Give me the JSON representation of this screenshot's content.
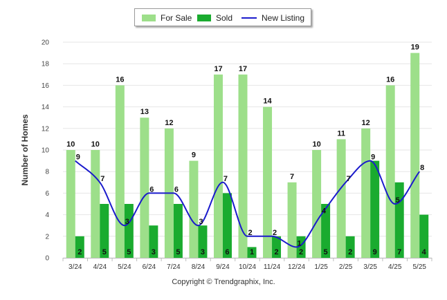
{
  "legend": {
    "for_sale": "For Sale",
    "sold": "Sold",
    "new_listing": "New Listing"
  },
  "copyright": "Copyright © Trendgraphix, Inc.",
  "colors": {
    "for_sale": "#9ddf8a",
    "sold": "#1aab2f",
    "new_listing": "#1a1acc"
  },
  "chart_data": {
    "type": "bar",
    "ylabel": "Number of Homes",
    "xlabel": "",
    "ylim": [
      0,
      20
    ],
    "yticks": [
      0,
      2,
      4,
      6,
      8,
      10,
      12,
      14,
      16,
      18,
      20
    ],
    "grid": true,
    "legend_position": "top",
    "categories": [
      "3/24",
      "4/24",
      "5/24",
      "6/24",
      "7/24",
      "8/24",
      "9/24",
      "10/24",
      "11/24",
      "12/24",
      "1/25",
      "2/25",
      "3/25",
      "4/25",
      "5/25"
    ],
    "series": [
      {
        "name": "For Sale",
        "type": "bar",
        "values": [
          10,
          10,
          16,
          13,
          12,
          9,
          17,
          17,
          14,
          7,
          10,
          11,
          12,
          16,
          19
        ]
      },
      {
        "name": "Sold",
        "type": "bar",
        "values": [
          2,
          5,
          5,
          3,
          5,
          3,
          6,
          1,
          2,
          2,
          5,
          2,
          9,
          7,
          4
        ]
      },
      {
        "name": "New Listing",
        "type": "line",
        "values": [
          9,
          7,
          3,
          6,
          6,
          3,
          7,
          2,
          2,
          1,
          4,
          7,
          9,
          5,
          8
        ]
      }
    ]
  }
}
